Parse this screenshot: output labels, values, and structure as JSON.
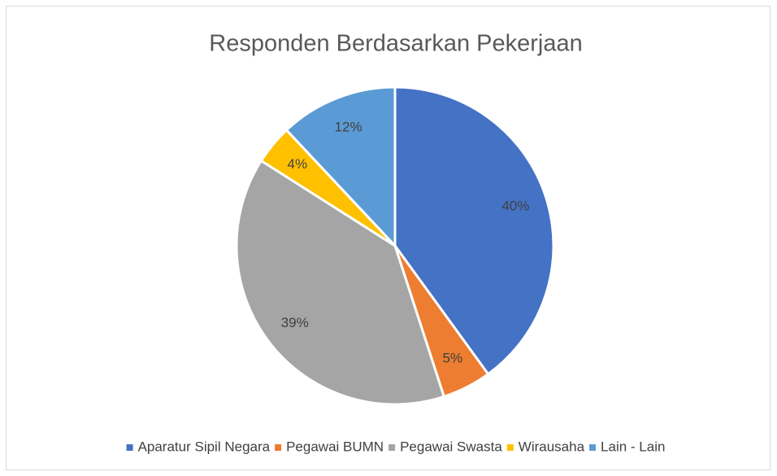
{
  "chart_data": {
    "type": "pie",
    "title": "Responden Berdasarkan Pekerjaan",
    "categories": [
      "Aparatur Sipil Negara",
      "Pegawai BUMN",
      "Pegawai Swasta",
      "Wirausaha",
      "Lain - Lain"
    ],
    "values": [
      40,
      5,
      39,
      4,
      12
    ],
    "value_labels": [
      "40%",
      "5%",
      "39%",
      "4%",
      "12%"
    ],
    "colors": [
      "#4472c4",
      "#ed7d31",
      "#a5a5a5",
      "#ffc000",
      "#5b9bd5"
    ],
    "legend": "bottom"
  }
}
